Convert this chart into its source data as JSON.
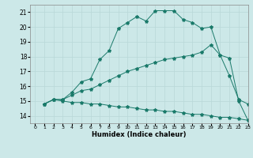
{
  "xlabel": "Humidex (Indice chaleur)",
  "bg_color": "#cce8e8",
  "line_color": "#1a7a6a",
  "ylim": [
    13.5,
    21.5
  ],
  "xlim": [
    -0.5,
    23
  ],
  "yticks": [
    14,
    15,
    16,
    17,
    18,
    19,
    20,
    21
  ],
  "xticks": [
    0,
    1,
    2,
    3,
    4,
    5,
    6,
    7,
    8,
    9,
    10,
    11,
    12,
    13,
    14,
    15,
    16,
    17,
    18,
    19,
    20,
    21,
    22,
    23
  ],
  "line1_x": [
    1,
    2,
    3,
    4,
    5,
    6,
    7,
    8,
    9,
    10,
    11,
    12,
    13,
    14,
    15,
    16,
    17,
    18,
    19,
    20,
    21,
    22,
    23
  ],
  "line1_y": [
    14.8,
    15.1,
    15.1,
    15.6,
    16.3,
    16.5,
    17.8,
    18.4,
    19.9,
    20.3,
    20.7,
    20.4,
    21.1,
    21.1,
    21.1,
    20.5,
    20.3,
    19.9,
    20.0,
    18.1,
    16.7,
    15.1,
    14.8
  ],
  "line2_x": [
    1,
    2,
    3,
    4,
    5,
    6,
    7,
    8,
    9,
    10,
    11,
    12,
    13,
    14,
    15,
    16,
    17,
    18,
    19,
    20,
    21,
    22,
    23
  ],
  "line2_y": [
    14.8,
    15.1,
    15.1,
    15.4,
    15.7,
    15.8,
    16.1,
    16.4,
    16.7,
    17.0,
    17.2,
    17.4,
    17.6,
    17.8,
    17.9,
    18.0,
    18.1,
    18.3,
    18.8,
    18.1,
    17.9,
    15.0,
    13.7
  ],
  "line3_x": [
    1,
    2,
    3,
    4,
    5,
    6,
    7,
    8,
    9,
    10,
    11,
    12,
    13,
    14,
    15,
    16,
    17,
    18,
    19,
    20,
    21,
    22,
    23
  ],
  "line3_y": [
    14.8,
    15.1,
    15.0,
    14.9,
    14.9,
    14.8,
    14.8,
    14.7,
    14.6,
    14.6,
    14.5,
    14.4,
    14.4,
    14.3,
    14.3,
    14.2,
    14.1,
    14.1,
    14.0,
    13.9,
    13.9,
    13.8,
    13.7
  ]
}
